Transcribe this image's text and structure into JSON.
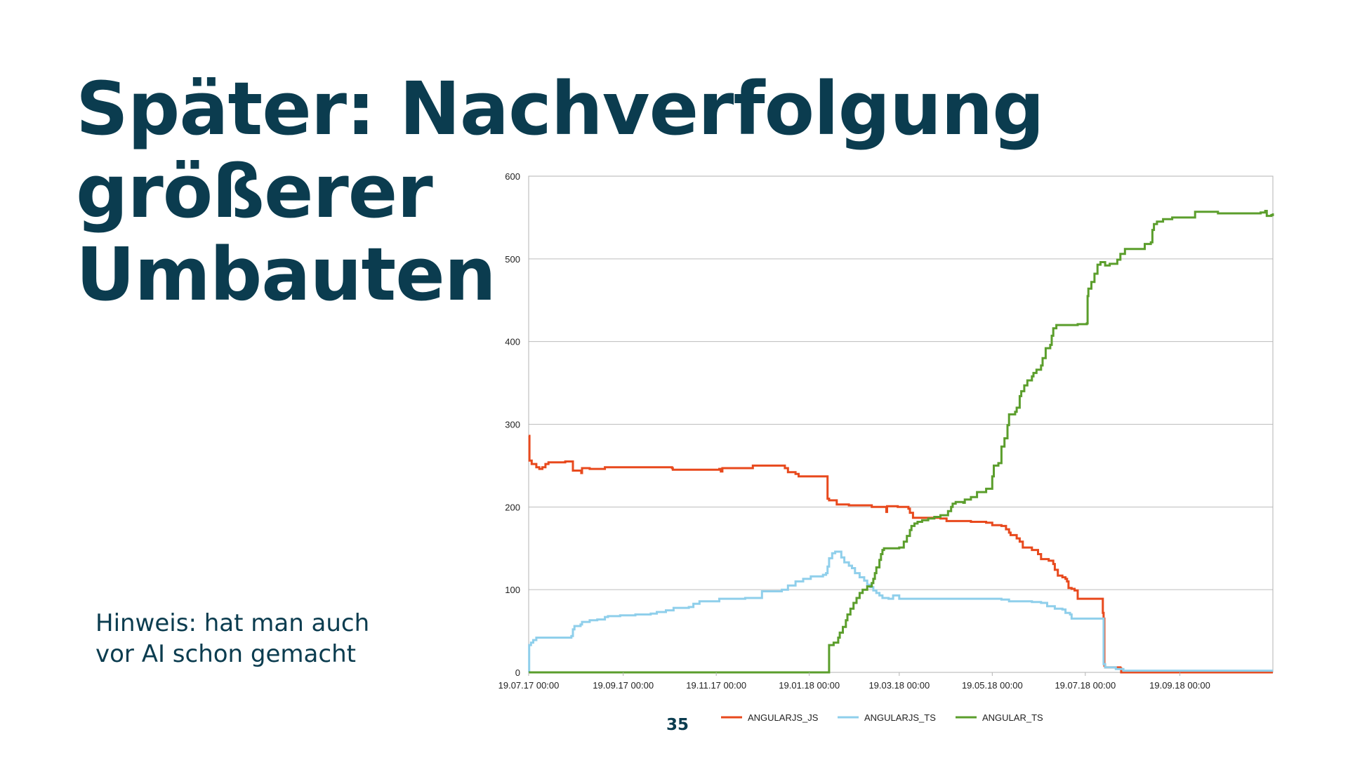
{
  "slide": {
    "title_line1": "Später: Nachverfolgung größerer",
    "title_line2": "Umbauten",
    "note_line1": "Hinweis: hat man auch",
    "note_line2": "vor AI schon gemacht",
    "page_number": "35"
  },
  "chart_data": {
    "type": "line",
    "title": "",
    "xlabel": "",
    "ylabel": "",
    "ylim": [
      0,
      600
    ],
    "y_ticks": [
      0,
      100,
      200,
      300,
      400,
      500,
      600
    ],
    "x_range_days": [
      0,
      488
    ],
    "x_ticks": [
      {
        "day": 0,
        "label": "19.07.17 00:00"
      },
      {
        "day": 62,
        "label": "19.09.17 00:00"
      },
      {
        "day": 123,
        "label": "19.11.17 00:00"
      },
      {
        "day": 184,
        "label": "19.01.18 00:00"
      },
      {
        "day": 243,
        "label": "19.03.18 00:00"
      },
      {
        "day": 304,
        "label": "19.05.18 00:00"
      },
      {
        "day": 365,
        "label": "19.07.18 00:00"
      },
      {
        "day": 427,
        "label": "19.09.18 00:00"
      }
    ],
    "grid": true,
    "legend": "bottom",
    "series": [
      {
        "name": "ANGULARJS_JS",
        "color": "#e8491d",
        "points": [
          [
            0,
            286
          ],
          [
            0.5,
            256
          ],
          [
            2,
            252
          ],
          [
            5,
            248
          ],
          [
            7,
            246
          ],
          [
            9,
            248
          ],
          [
            11,
            252
          ],
          [
            13,
            254
          ],
          [
            20,
            254
          ],
          [
            24,
            255
          ],
          [
            28,
            255
          ],
          [
            29,
            244
          ],
          [
            34,
            244
          ],
          [
            34.5,
            241
          ],
          [
            35,
            247
          ],
          [
            40,
            246
          ],
          [
            45,
            246
          ],
          [
            50,
            248
          ],
          [
            80,
            248
          ],
          [
            94,
            247
          ],
          [
            94.5,
            245
          ],
          [
            100,
            245
          ],
          [
            120,
            245
          ],
          [
            125,
            246
          ],
          [
            126,
            243
          ],
          [
            127,
            247
          ],
          [
            145,
            247
          ],
          [
            147,
            250
          ],
          [
            165,
            250
          ],
          [
            168,
            247
          ],
          [
            170,
            242
          ],
          [
            175,
            240
          ],
          [
            177,
            237
          ],
          [
            188,
            237
          ],
          [
            195,
            237
          ],
          [
            196,
            210
          ],
          [
            197,
            208
          ],
          [
            200,
            208
          ],
          [
            202,
            203
          ],
          [
            210,
            202
          ],
          [
            225,
            200
          ],
          [
            234,
            200
          ],
          [
            234.5,
            194
          ],
          [
            235,
            201
          ],
          [
            242,
            200
          ],
          [
            249,
            198
          ],
          [
            250,
            193
          ],
          [
            252,
            187
          ],
          [
            262,
            187
          ],
          [
            270,
            186
          ],
          [
            274,
            183
          ],
          [
            290,
            182
          ],
          [
            300,
            181
          ],
          [
            304,
            178
          ],
          [
            310,
            177
          ],
          [
            313,
            173
          ],
          [
            315,
            169
          ],
          [
            316,
            166
          ],
          [
            320,
            162
          ],
          [
            322,
            158
          ],
          [
            324,
            151
          ],
          [
            330,
            148
          ],
          [
            334,
            143
          ],
          [
            336,
            137
          ],
          [
            341,
            135
          ],
          [
            344,
            131
          ],
          [
            345,
            124
          ],
          [
            347,
            117
          ],
          [
            350,
            115
          ],
          [
            352,
            113
          ],
          [
            353,
            110
          ],
          [
            354,
            102
          ],
          [
            356,
            101
          ],
          [
            358,
            99
          ],
          [
            360,
            89
          ],
          [
            369,
            89
          ],
          [
            376,
            89
          ],
          [
            376.5,
            72
          ],
          [
            377,
            65
          ],
          [
            377.5,
            8
          ],
          [
            378,
            6
          ],
          [
            388,
            5
          ],
          [
            388.5,
            0
          ],
          [
            488,
            0
          ]
        ]
      },
      {
        "name": "ANGULARJS_TS",
        "color": "#8fcfeb",
        "points": [
          [
            0,
            0
          ],
          [
            0.3,
            33
          ],
          [
            1.5,
            36
          ],
          [
            3,
            39
          ],
          [
            5,
            42
          ],
          [
            25,
            42
          ],
          [
            28,
            44
          ],
          [
            29,
            52
          ],
          [
            30,
            56
          ],
          [
            34,
            58
          ],
          [
            35,
            61
          ],
          [
            40,
            63
          ],
          [
            45,
            64
          ],
          [
            50,
            67
          ],
          [
            52,
            68
          ],
          [
            60,
            69
          ],
          [
            70,
            70
          ],
          [
            80,
            71
          ],
          [
            84,
            73
          ],
          [
            90,
            75
          ],
          [
            95,
            78
          ],
          [
            105,
            79
          ],
          [
            108,
            83
          ],
          [
            112,
            86
          ],
          [
            125,
            89
          ],
          [
            142,
            90
          ],
          [
            153,
            98
          ],
          [
            166,
            100
          ],
          [
            170,
            105
          ],
          [
            175,
            110
          ],
          [
            180,
            113
          ],
          [
            185,
            116
          ],
          [
            193,
            118
          ],
          [
            195,
            120
          ],
          [
            196,
            128
          ],
          [
            197,
            138
          ],
          [
            199,
            144
          ],
          [
            201,
            146
          ],
          [
            203,
            146
          ],
          [
            205,
            139
          ],
          [
            207,
            133
          ],
          [
            210,
            129
          ],
          [
            212,
            126
          ],
          [
            214,
            120
          ],
          [
            217,
            115
          ],
          [
            220,
            111
          ],
          [
            222,
            106
          ],
          [
            224,
            103
          ],
          [
            226,
            99
          ],
          [
            228,
            96
          ],
          [
            230,
            93
          ],
          [
            232,
            90
          ],
          [
            236,
            89
          ],
          [
            238,
            89
          ],
          [
            239,
            93
          ],
          [
            241,
            93
          ],
          [
            243,
            89
          ],
          [
            300,
            89
          ],
          [
            310,
            88
          ],
          [
            315,
            86
          ],
          [
            330,
            85
          ],
          [
            336,
            84
          ],
          [
            340,
            80
          ],
          [
            345,
            77
          ],
          [
            350,
            76
          ],
          [
            352,
            72
          ],
          [
            355,
            70
          ],
          [
            356,
            65
          ],
          [
            376,
            65
          ],
          [
            377,
            10
          ],
          [
            378,
            6
          ],
          [
            385,
            4
          ],
          [
            390,
            2
          ],
          [
            488,
            2
          ]
        ]
      },
      {
        "name": "ANGULAR_TS",
        "color": "#5b9e2c",
        "points": [
          [
            0,
            0
          ],
          [
            196,
            0
          ],
          [
            197,
            33
          ],
          [
            200,
            36
          ],
          [
            203,
            42
          ],
          [
            204,
            48
          ],
          [
            206,
            55
          ],
          [
            208,
            63
          ],
          [
            209,
            70
          ],
          [
            211,
            77
          ],
          [
            213,
            84
          ],
          [
            215,
            90
          ],
          [
            217,
            96
          ],
          [
            219,
            100
          ],
          [
            222,
            104
          ],
          [
            225,
            108
          ],
          [
            226,
            113
          ],
          [
            227,
            120
          ],
          [
            228,
            127
          ],
          [
            230,
            136
          ],
          [
            231,
            143
          ],
          [
            232,
            148
          ],
          [
            233,
            150
          ],
          [
            243,
            151
          ],
          [
            246,
            158
          ],
          [
            248,
            165
          ],
          [
            250,
            172
          ],
          [
            251,
            177
          ],
          [
            253,
            180
          ],
          [
            255,
            182
          ],
          [
            258,
            184
          ],
          [
            262,
            186
          ],
          [
            266,
            188
          ],
          [
            270,
            190
          ],
          [
            275,
            195
          ],
          [
            277,
            200
          ],
          [
            278,
            204
          ],
          [
            280,
            206
          ],
          [
            285,
            205
          ],
          [
            286,
            209
          ],
          [
            290,
            212
          ],
          [
            294,
            218
          ],
          [
            300,
            222
          ],
          [
            304,
            237
          ],
          [
            305,
            250
          ],
          [
            308,
            253
          ],
          [
            310,
            273
          ],
          [
            312,
            283
          ],
          [
            314,
            299
          ],
          [
            315,
            312
          ],
          [
            319,
            315
          ],
          [
            320,
            320
          ],
          [
            322,
            334
          ],
          [
            323,
            340
          ],
          [
            325,
            347
          ],
          [
            327,
            353
          ],
          [
            330,
            358
          ],
          [
            331,
            362
          ],
          [
            333,
            366
          ],
          [
            336,
            371
          ],
          [
            337,
            380
          ],
          [
            339,
            392
          ],
          [
            342,
            396
          ],
          [
            343,
            407
          ],
          [
            344,
            416
          ],
          [
            346,
            420
          ],
          [
            355,
            420
          ],
          [
            360,
            421
          ],
          [
            366,
            422
          ],
          [
            366.5,
            455
          ],
          [
            367,
            464
          ],
          [
            369,
            472
          ],
          [
            371,
            482
          ],
          [
            373,
            493
          ],
          [
            375,
            496
          ],
          [
            378,
            492
          ],
          [
            381,
            494
          ],
          [
            386,
            499
          ],
          [
            388,
            506
          ],
          [
            391,
            512
          ],
          [
            396,
            512
          ],
          [
            402,
            512
          ],
          [
            404,
            518
          ],
          [
            408,
            520
          ],
          [
            409,
            535
          ],
          [
            410,
            542
          ],
          [
            412,
            545
          ],
          [
            416,
            548
          ],
          [
            422,
            550
          ],
          [
            435,
            550
          ],
          [
            437,
            557
          ],
          [
            450,
            557
          ],
          [
            452,
            555
          ],
          [
            470,
            555
          ],
          [
            480,
            556
          ],
          [
            483,
            558
          ],
          [
            484,
            552
          ],
          [
            487,
            553
          ],
          [
            488,
            555
          ]
        ]
      }
    ]
  }
}
